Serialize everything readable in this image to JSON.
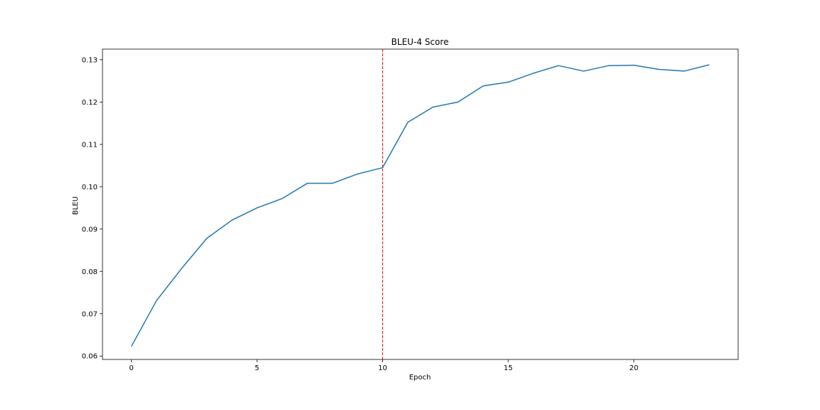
{
  "chart_data": {
    "type": "line",
    "title": "BLEU-4 Score",
    "xlabel": "Epoch",
    "ylabel": "BLEU",
    "xlim": [
      -1.15,
      24.15
    ],
    "ylim": [
      0.0592,
      0.1325
    ],
    "x_ticks": [
      0,
      5,
      10,
      15,
      20
    ],
    "x_tick_labels": [
      "0",
      "5",
      "10",
      "15",
      "20"
    ],
    "y_ticks": [
      0.06,
      0.07,
      0.08,
      0.09,
      0.1,
      0.11,
      0.12,
      0.13
    ],
    "y_tick_labels": [
      "0.06",
      "0.07",
      "0.08",
      "0.09",
      "0.10",
      "0.11",
      "0.12",
      "0.13"
    ],
    "grid": false,
    "series": [
      {
        "color": "#1f77b4",
        "x": [
          0,
          1,
          2,
          3,
          4,
          5,
          6,
          7,
          8,
          9,
          10,
          11,
          12,
          13,
          14,
          15,
          16,
          17,
          18,
          19,
          20,
          21,
          22,
          23
        ],
        "y": [
          0.0623,
          0.0731,
          0.0807,
          0.0878,
          0.0921,
          0.095,
          0.0972,
          0.1008,
          0.1008,
          0.103,
          0.1045,
          0.1152,
          0.1188,
          0.12,
          0.1238,
          0.1247,
          0.1268,
          0.1286,
          0.1273,
          0.1286,
          0.1287,
          0.1277,
          0.1273,
          0.1288
        ]
      }
    ],
    "vline": {
      "x": 10,
      "color": "#ff0000",
      "style": "dashed"
    },
    "highlight_tick": {
      "x": 10,
      "color": "#ff0000"
    }
  }
}
